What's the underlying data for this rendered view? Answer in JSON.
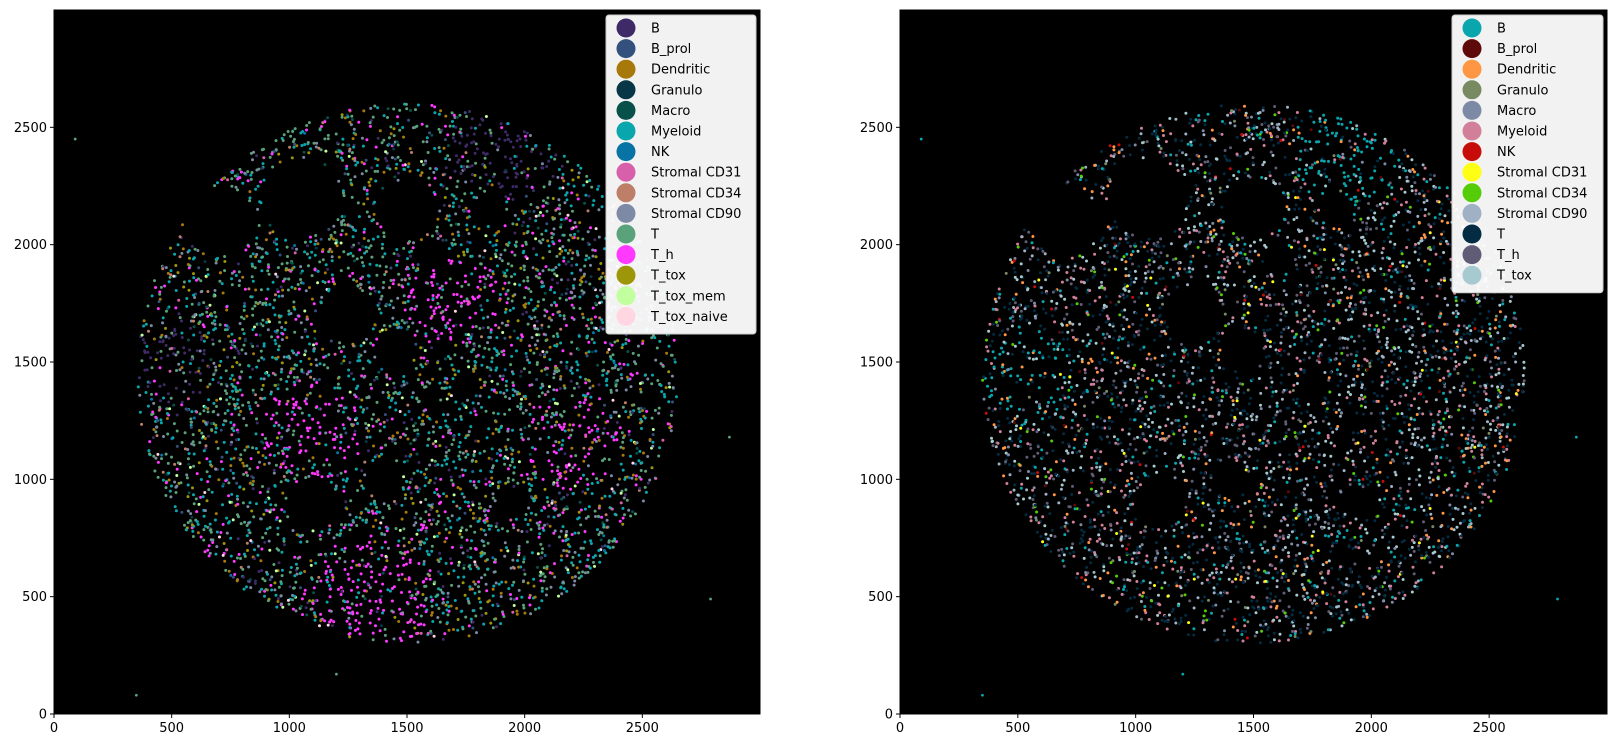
{
  "chart_data": [
    {
      "type": "scatter",
      "title": "",
      "xlabel": "",
      "ylabel": "",
      "xlim": [
        0,
        3000
      ],
      "ylim": [
        0,
        3000
      ],
      "x_ticks": [
        0,
        500,
        1000,
        1500,
        2000,
        2500
      ],
      "y_ticks": [
        0,
        500,
        1000,
        1500,
        2000,
        2500
      ],
      "background": "#000000",
      "legend_position": "top-right",
      "grid": false,
      "tissue_region": {
        "center": [
          1500,
          1450
        ],
        "radius": 1150
      },
      "series": [
        {
          "name": "B",
          "color": "#3f2a68",
          "weight": 5,
          "hotspots": [
            [
              1900,
              2400,
              220
            ],
            [
              500,
              1500,
              180
            ]
          ]
        },
        {
          "name": "B_prol",
          "color": "#34507d",
          "weight": 2,
          "hotspots": []
        },
        {
          "name": "Dendritic",
          "color": "#a7780a",
          "weight": 6,
          "hotspots": []
        },
        {
          "name": "Granulo",
          "color": "#073746",
          "weight": 1,
          "hotspots": []
        },
        {
          "name": "Macro",
          "color": "#08504a",
          "weight": 2,
          "hotspots": []
        },
        {
          "name": "Myeloid",
          "color": "#0aa6ad",
          "weight": 20,
          "hotspots": []
        },
        {
          "name": "NK",
          "color": "#0874a5",
          "weight": 1,
          "hotspots": []
        },
        {
          "name": "Stromal CD31",
          "color": "#d85fa9",
          "weight": 1,
          "hotspots": []
        },
        {
          "name": "Stromal CD34",
          "color": "#be7f68",
          "weight": 2,
          "hotspots": []
        },
        {
          "name": "Stromal CD90",
          "color": "#7d8aa6",
          "weight": 10,
          "hotspots": []
        },
        {
          "name": "T",
          "color": "#5aa27a",
          "weight": 22,
          "hotspots": []
        },
        {
          "name": "T_h",
          "color": "#ff39ff",
          "weight": 9,
          "hotspots": [
            [
              1350,
              500,
              250
            ],
            [
              1100,
              1200,
              220
            ],
            [
              2200,
              1150,
              200
            ],
            [
              1700,
              1750,
              200
            ]
          ]
        },
        {
          "name": "T_tox",
          "color": "#9e9609",
          "weight": 4,
          "hotspots": []
        },
        {
          "name": "T_tox_mem",
          "color": "#c2ff9e",
          "weight": 2,
          "hotspots": []
        },
        {
          "name": "T_tox_naive",
          "color": "#ffd6e2",
          "weight": 1,
          "hotspots": []
        }
      ],
      "outliers": [
        [
          90,
          2450
        ],
        [
          350,
          80
        ],
        [
          1200,
          170
        ],
        [
          2870,
          1180
        ],
        [
          2790,
          490
        ]
      ]
    },
    {
      "type": "scatter",
      "title": "",
      "xlabel": "",
      "ylabel": "",
      "xlim": [
        0,
        3000
      ],
      "ylim": [
        0,
        3000
      ],
      "x_ticks": [
        0,
        500,
        1000,
        1500,
        2000,
        2500
      ],
      "y_ticks": [
        0,
        500,
        1000,
        1500,
        2000,
        2500
      ],
      "background": "#000000",
      "legend_position": "top-right",
      "grid": false,
      "tissue_region": {
        "center": [
          1500,
          1450
        ],
        "radius": 1150
      },
      "series": [
        {
          "name": "B",
          "color": "#0aa6ad",
          "weight": 8,
          "hotspots": [
            [
              1900,
              2400,
              240
            ],
            [
              550,
              1450,
              200
            ]
          ]
        },
        {
          "name": "B_prol",
          "color": "#5e0a0a",
          "weight": 1,
          "hotspots": []
        },
        {
          "name": "Dendritic",
          "color": "#ff9643",
          "weight": 6,
          "hotspots": []
        },
        {
          "name": "Granulo",
          "color": "#788a62",
          "weight": 2,
          "hotspots": []
        },
        {
          "name": "Macro",
          "color": "#7d8aa6",
          "weight": 4,
          "hotspots": []
        },
        {
          "name": "Myeloid",
          "color": "#d2809a",
          "weight": 12,
          "hotspots": []
        },
        {
          "name": "NK",
          "color": "#c60d0a",
          "weight": 1,
          "hotspots": []
        },
        {
          "name": "Stromal CD31",
          "color": "#ffff14",
          "weight": 1,
          "hotspots": []
        },
        {
          "name": "Stromal CD34",
          "color": "#55cc08",
          "weight": 3,
          "hotspots": []
        },
        {
          "name": "Stromal CD90",
          "color": "#9fb1c5",
          "weight": 8,
          "hotspots": []
        },
        {
          "name": "T",
          "color": "#032b41",
          "weight": 30,
          "hotspots": []
        },
        {
          "name": "T_h",
          "color": "#615c75",
          "weight": 12,
          "hotspots": []
        },
        {
          "name": "T_tox",
          "color": "#a6cacf",
          "weight": 12,
          "hotspots": []
        }
      ],
      "outliers": [
        [
          90,
          2450
        ],
        [
          350,
          80
        ],
        [
          1200,
          170
        ],
        [
          2870,
          1180
        ],
        [
          2790,
          490
        ]
      ]
    }
  ]
}
